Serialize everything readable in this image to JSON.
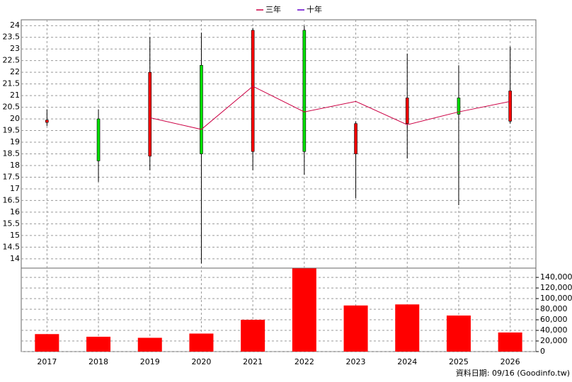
{
  "chart_data": {
    "type": "candlestick",
    "categories": [
      "2017",
      "2018",
      "2019",
      "2020",
      "2021",
      "2022",
      "2023",
      "2024",
      "2025",
      "2026"
    ],
    "open": [
      19.85,
      20.0,
      18.4,
      22.3,
      18.6,
      23.8,
      18.5,
      19.8,
      20.9,
      19.9
    ],
    "high": [
      20.4,
      20.4,
      23.5,
      23.7,
      23.9,
      24.0,
      19.9,
      22.8,
      22.3,
      23.1
    ],
    "low": [
      19.7,
      17.3,
      17.8,
      13.8,
      17.8,
      17.6,
      16.6,
      18.3,
      16.3,
      19.8
    ],
    "close": [
      19.95,
      18.2,
      22.0,
      18.5,
      23.8,
      18.6,
      19.8,
      20.9,
      20.2,
      21.2
    ],
    "up_color": "#ff0000",
    "down_color": "#00e000",
    "series": [
      {
        "name": "三年",
        "color": "#cc0044",
        "values": [
          null,
          null,
          20.05,
          19.55,
          21.4,
          20.3,
          20.75,
          19.75,
          20.3,
          20.75
        ]
      },
      {
        "name": "十年",
        "color": "#6600cc",
        "values": [
          null,
          null,
          null,
          null,
          null,
          null,
          null,
          null,
          null,
          null
        ]
      }
    ],
    "volume": {
      "color": "#ff0000",
      "values": [
        33000,
        28000,
        26000,
        34000,
        60000,
        157000,
        87000,
        89000,
        68000,
        36000
      ]
    },
    "ylim": [
      13.6,
      24.25
    ],
    "yticks": [
      14,
      14.5,
      15,
      15.5,
      16,
      16.5,
      17,
      17.5,
      18,
      18.5,
      19,
      19.5,
      20,
      20.5,
      21,
      21.5,
      22,
      22.5,
      23,
      23.5,
      24
    ],
    "y2lim": [
      0,
      157500
    ],
    "y2ticks": [
      0,
      {
        "value": 20000,
        "label": "20,000"
      },
      {
        "value": 40000,
        "label": "40,000"
      },
      {
        "value": 60000,
        "label": "60,000"
      },
      {
        "value": 80000,
        "label": "80,000"
      },
      {
        "value": 100000,
        "label": "100,000"
      },
      {
        "value": 120000,
        "label": "120,000"
      },
      {
        "value": 140000,
        "label": "140,000"
      }
    ],
    "grid": true,
    "legend": "top",
    "footer": "資料日期: 09/16  (Goodinfo.tw)"
  }
}
